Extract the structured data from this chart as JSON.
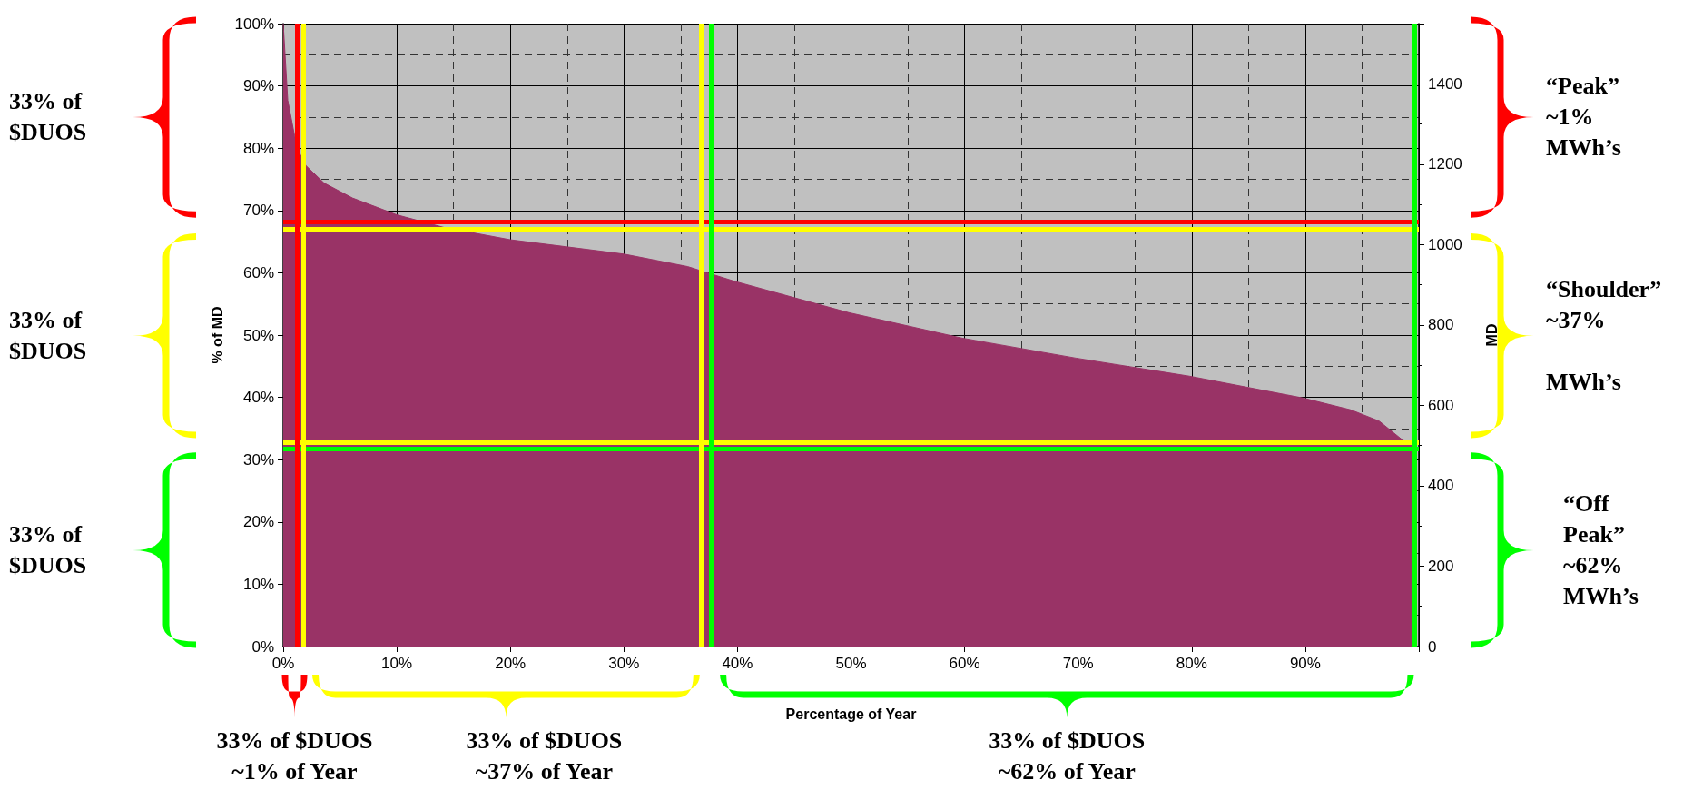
{
  "chart_data": {
    "type": "area",
    "xlabel": "Percentage of Year",
    "ylabel": "% of MD",
    "y2label": "MD",
    "x": [
      0,
      0.4,
      1.0,
      1.5,
      2.0,
      3.6,
      6.1,
      10,
      14.1,
      20,
      24.8,
      30,
      35.6,
      39.8,
      49.8,
      59.8,
      69.8,
      79.8,
      89.8,
      94,
      96.5,
      98.6,
      99.5
    ],
    "series": [
      {
        "color": "#993366",
        "values": [
          100,
          87.7,
          82,
          79,
          77.2,
          74.4,
          72,
          69.3,
          67.3,
          65.3,
          64.2,
          63,
          61,
          58.6,
          53.6,
          49.5,
          46.3,
          43.4,
          39.9,
          38,
          36.2,
          33.1,
          32.3
        ]
      }
    ],
    "marker": "none",
    "xlim": [
      0,
      100
    ],
    "ylim": [
      0,
      100
    ],
    "y2lim": [
      0,
      1550
    ],
    "xticks": [
      {
        "value": 0,
        "label": "0%"
      },
      {
        "value": 10,
        "label": "10%"
      },
      {
        "value": 20,
        "label": "20%"
      },
      {
        "value": 30,
        "label": "30%"
      },
      {
        "value": 40,
        "label": "40%"
      },
      {
        "value": 50,
        "label": "50%"
      },
      {
        "value": 60,
        "label": "60%"
      },
      {
        "value": 70,
        "label": "70%"
      },
      {
        "value": 80,
        "label": "80%"
      },
      {
        "value": 90,
        "label": "90%"
      },
      {
        "value": 100,
        "label": null
      }
    ],
    "yticks": [
      {
        "value": 0,
        "label": "0%"
      },
      {
        "value": 10,
        "label": "10%"
      },
      {
        "value": 20,
        "label": "20%"
      },
      {
        "value": 30,
        "label": "30%"
      },
      {
        "value": 40,
        "label": "40%"
      },
      {
        "value": 50,
        "label": "50%"
      },
      {
        "value": 60,
        "label": "60%"
      },
      {
        "value": 70,
        "label": "70%"
      },
      {
        "value": 80,
        "label": "80%"
      },
      {
        "value": 90,
        "label": "90%"
      },
      {
        "value": 100,
        "label": "100%"
      }
    ],
    "y2ticks": [
      0,
      200,
      400,
      600,
      800,
      1000,
      1200,
      1400
    ],
    "grid": true,
    "ref_lines": [
      {
        "axis": "y",
        "value": 68.2,
        "color": "#ff0000"
      },
      {
        "axis": "y",
        "value": 67,
        "color": "#ffff00"
      },
      {
        "axis": "y",
        "value": 32.8,
        "color": "#ffff00"
      },
      {
        "axis": "y",
        "value": 31.8,
        "color": "#00ff00"
      },
      {
        "axis": "x",
        "value": 1.2,
        "color": "#ff0000"
      },
      {
        "axis": "x",
        "value": 1.8,
        "color": "#ffff00"
      },
      {
        "axis": "x",
        "value": 36.8,
        "color": "#ffff00"
      },
      {
        "axis": "x",
        "value": 37.7,
        "color": "#00ff00"
      },
      {
        "axis": "x",
        "value": 99.6,
        "color": "#00ff00"
      }
    ],
    "annotations": [
      "33% of\n$DUOS",
      "33% of\n$DUOS",
      "33% of\n$DUOS",
      "“Peak”\n~1%\nMWh’s",
      "“Shoulder”\n~37%\n\nMWh’s",
      "“Off\nPeak”\n~62%\nMWh’s",
      "33% of $DUOS\n~1% of Year",
      "33% of $DUOS\n~37% of Year",
      "33% of $DUOS\n~62% of Year"
    ]
  }
}
